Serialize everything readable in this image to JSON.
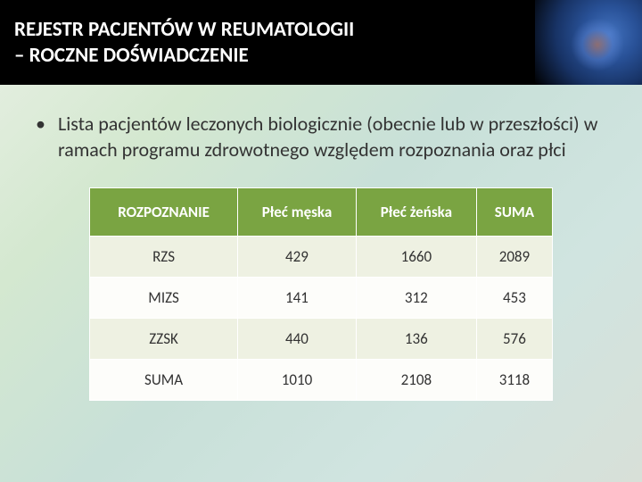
{
  "header": {
    "title_line1": "REJESTR PACJENTÓW W REUMATOLOGII",
    "title_line2": "– ROCZNE DOŚWIADCZENIE"
  },
  "bullet": {
    "text": "Lista pacjentów leczonych biologicznie (obecnie lub w przeszłości) w ramach programu zdrowotnego względem rozpoznania oraz płci"
  },
  "table": {
    "columns": [
      "ROZPOZNANIE",
      "Płeć męska",
      "Płeć żeńska",
      "SUMA"
    ],
    "rows": [
      [
        "RZS",
        "429",
        "1660",
        "2089"
      ],
      [
        "MIZS",
        "141",
        "312",
        "453"
      ],
      [
        "ZZSK",
        "440",
        "136",
        "576"
      ],
      [
        "SUMA",
        "1010",
        "2108",
        "3118"
      ]
    ],
    "header_bg": "#7aa442",
    "header_color": "#ffffff",
    "row_odd_bg": "#eef1e2",
    "row_even_bg": "#fdfdfa",
    "font_size": 17
  }
}
